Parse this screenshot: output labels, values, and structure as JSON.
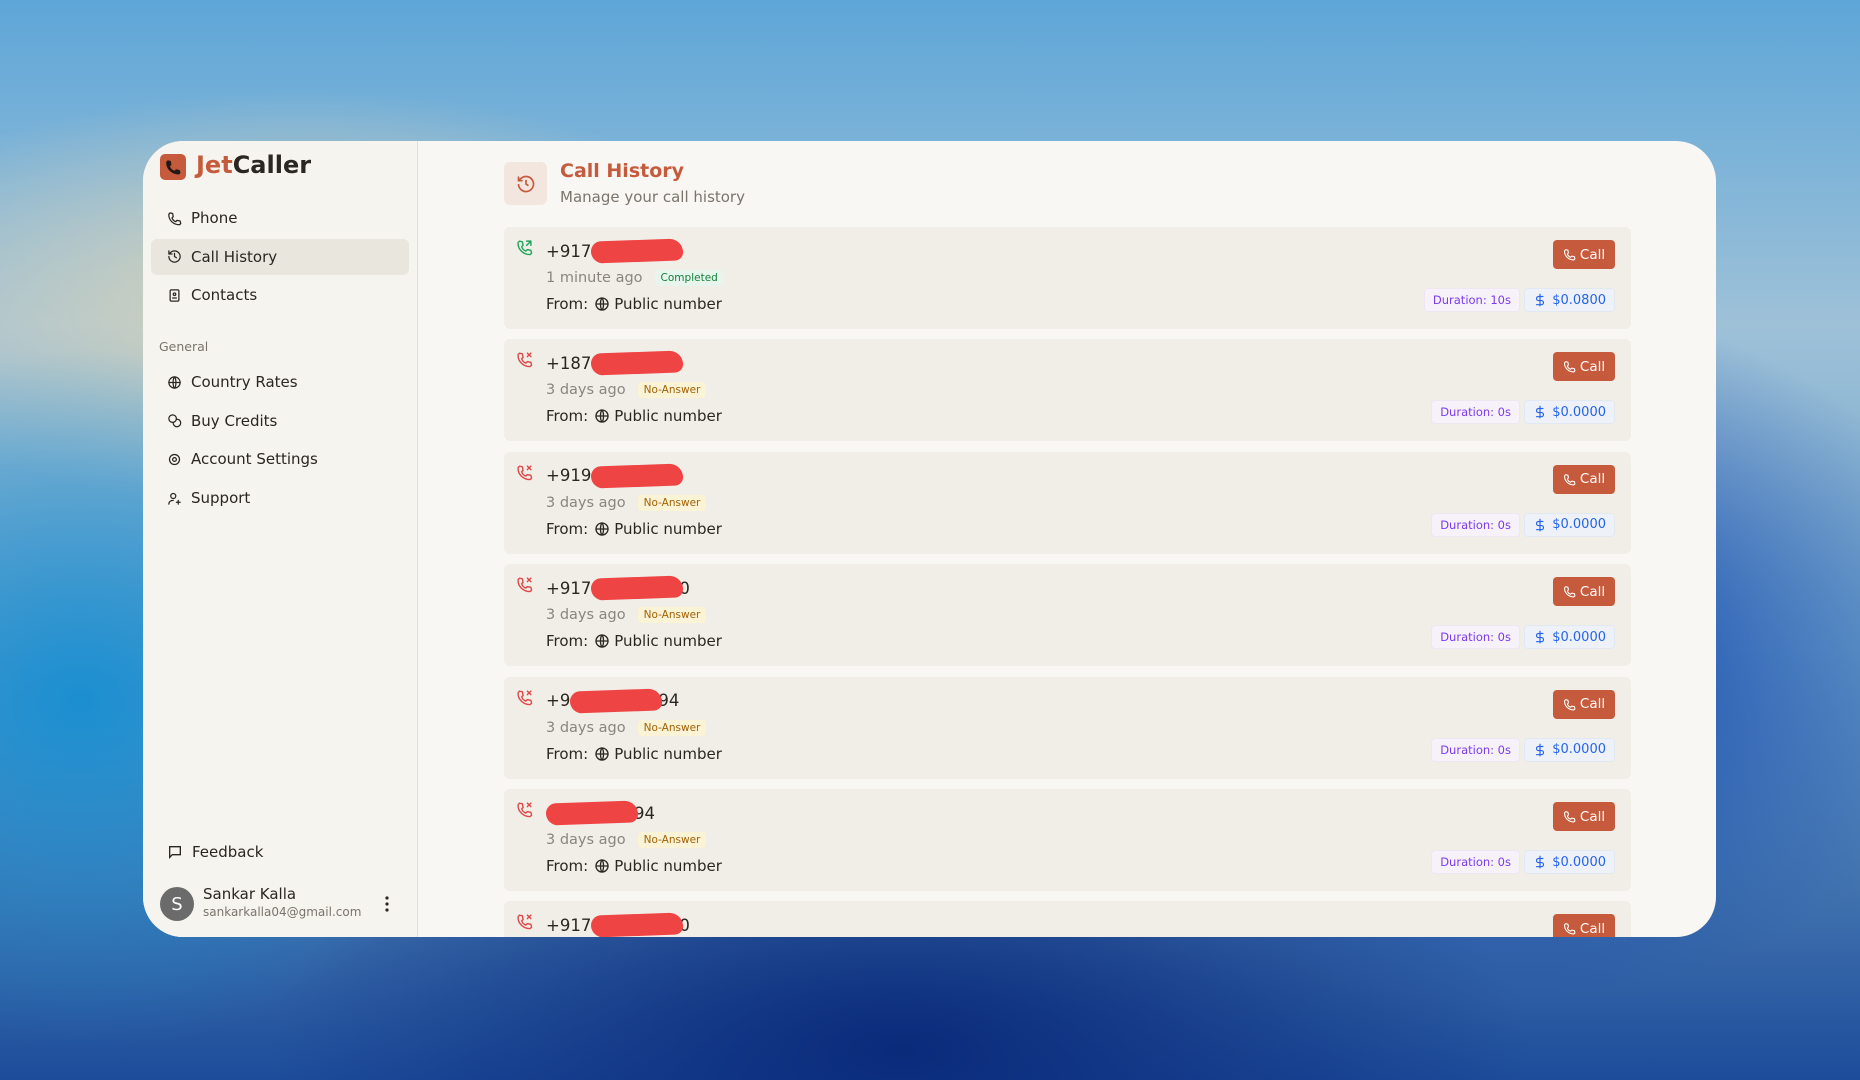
{
  "brand": {
    "accent": "Jet",
    "rest": "Caller"
  },
  "nav": [
    "Phone",
    "Call History",
    "Contacts"
  ],
  "general": {
    "heading": "General",
    "items": [
      "Country Rates",
      "Buy Credits",
      "Account Settings",
      "Support"
    ]
  },
  "feedback": "Feedback",
  "user": {
    "initial": "S",
    "name": "Sankar Kalla",
    "email": "sankarkalla04@gmail.com"
  },
  "header": {
    "title": "Call History",
    "subtitle": "Manage your call history"
  },
  "calls": [
    {
      "number": "+917",
      "time": "1 minute ago",
      "status": "Completed",
      "from": "From:",
      "source": "Public number",
      "call": "Call",
      "duration": "Duration: 10s",
      "cost": "$0.0800"
    },
    {
      "number": "+187",
      "time": "3 days ago",
      "status": "No-Answer",
      "from": "From:",
      "source": "Public number",
      "call": "Call",
      "duration": "Duration: 0s",
      "cost": "$0.0000"
    },
    {
      "number": "+919",
      "time": "3 days ago",
      "status": "No-Answer",
      "from": "From:",
      "source": "Public number",
      "call": "Call",
      "duration": "Duration: 0s",
      "cost": "$0.0000"
    },
    {
      "number": "+917",
      "number_end": "0",
      "time": "3 days ago",
      "status": "No-Answer",
      "from": "From:",
      "source": "Public number",
      "call": "Call",
      "duration": "Duration: 0s",
      "cost": "$0.0000"
    },
    {
      "number": "+9",
      "number_end": "94",
      "time": "3 days ago",
      "status": "No-Answer",
      "from": "From:",
      "source": "Public number",
      "call": "Call",
      "duration": "Duration: 0s",
      "cost": "$0.0000"
    },
    {
      "number_end": "94",
      "time": "3 days ago",
      "status": "No-Answer",
      "from": "From:",
      "source": "Public number",
      "call": "Call",
      "duration": "Duration: 0s",
      "cost": "$0.0000"
    },
    {
      "number": "+917",
      "number_end": "0",
      "call": "Call"
    }
  ]
}
